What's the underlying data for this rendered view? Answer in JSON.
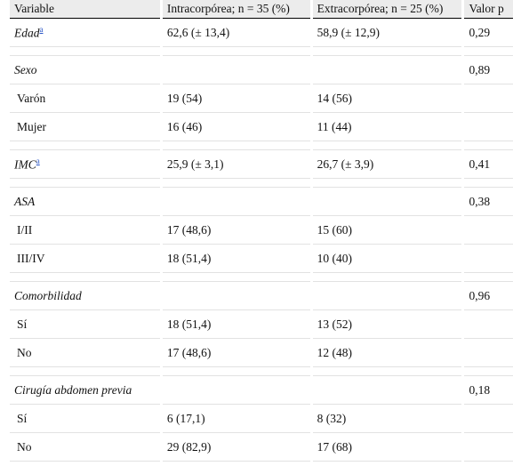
{
  "header": {
    "variable": "Variable",
    "intra": "Intracorpórea; n = 35 (%)",
    "extra": "Extracorpórea; n = 25 (%)",
    "pvalue": "Valor p"
  },
  "rows": {
    "edad": {
      "label": "Edad",
      "note": "a",
      "intra": "62,6 (± 13,4)",
      "extra": "58,9 (± 12,9)",
      "p": "0,29"
    },
    "sexo": {
      "label": "Sexo",
      "p": "0,89"
    },
    "varon": {
      "label": "Varón",
      "intra": "19 (54)",
      "extra": "14 (56)"
    },
    "mujer": {
      "label": "Mujer",
      "intra": "16 (46)",
      "extra": "11 (44)"
    },
    "imc": {
      "label": "IMC",
      "note": "a",
      "intra": "25,9 (± 3,1)",
      "extra": "26,7 (± 3,9)",
      "p": "0,41"
    },
    "asa": {
      "label": "ASA",
      "p": "0,38"
    },
    "asa12": {
      "label": "I/II",
      "intra": "17 (48,6)",
      "extra": "15 (60)"
    },
    "asa34": {
      "label": "III/IV",
      "intra": "18 (51,4)",
      "extra": "10 (40)"
    },
    "comorb": {
      "label": "Comorbilidad",
      "p": "0,96"
    },
    "comorb_si": {
      "label": "Sí",
      "intra": "18 (51,4)",
      "extra": "13 (52)"
    },
    "comorb_no": {
      "label": "No",
      "intra": "17 (48,6)",
      "extra": "12 (48)"
    },
    "cirugia": {
      "label": "Cirugía abdomen previa",
      "p": "0,18"
    },
    "cirugia_si": {
      "label": "Sí",
      "intra": "6 (17,1)",
      "extra": "8 (32)"
    },
    "cirugia_no": {
      "label": "No",
      "intra": "29 (82,9)",
      "extra": "17 (68)"
    }
  }
}
